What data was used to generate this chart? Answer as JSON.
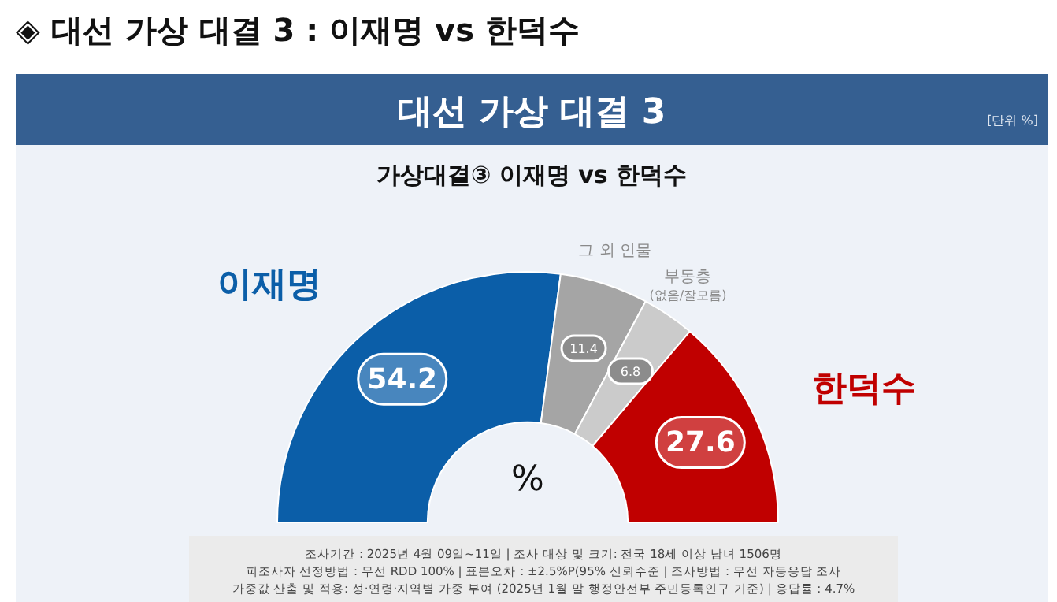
{
  "chart_data": {
    "type": "donut",
    "title": "◈ 대선 가상 대결 3 : 이재명 vs 한덕수",
    "subtitle": "대선 가상 대결 3",
    "categories": [
      "이재명",
      "그 외 인물",
      "부동층\n(없음/잘모름)",
      "한덕수"
    ],
    "values": [
      54.2,
      11.4,
      6.8,
      27.6
    ],
    "colors": [
      "#0b5ea8",
      "#a5a5a5",
      "#cbcbcb",
      "#c00000"
    ],
    "data_labels": true,
    "legend": false,
    "annotations": [
      "[단위 %]",
      "가상대결③ 이재명 vs 한덕수",
      "%",
      "조사기간 : 2025년 4월 09일~11일 | 조사 대상 및 크기: 전국 18세 이상 남녀 1506명",
      "피조사자 선정방법 : 무선 RDD 100% | 표본오차 : ±2.5%P(95% 신뢰수준 | 조사방법 : 무선 자동응답 조사",
      "가중값 산출 및 적용: 성·연령·지역별 가중 부여 (2025년 1월 말 행정안전부 주민등록인구  기준) | 응답률 : 4.7%"
    ]
  }
}
